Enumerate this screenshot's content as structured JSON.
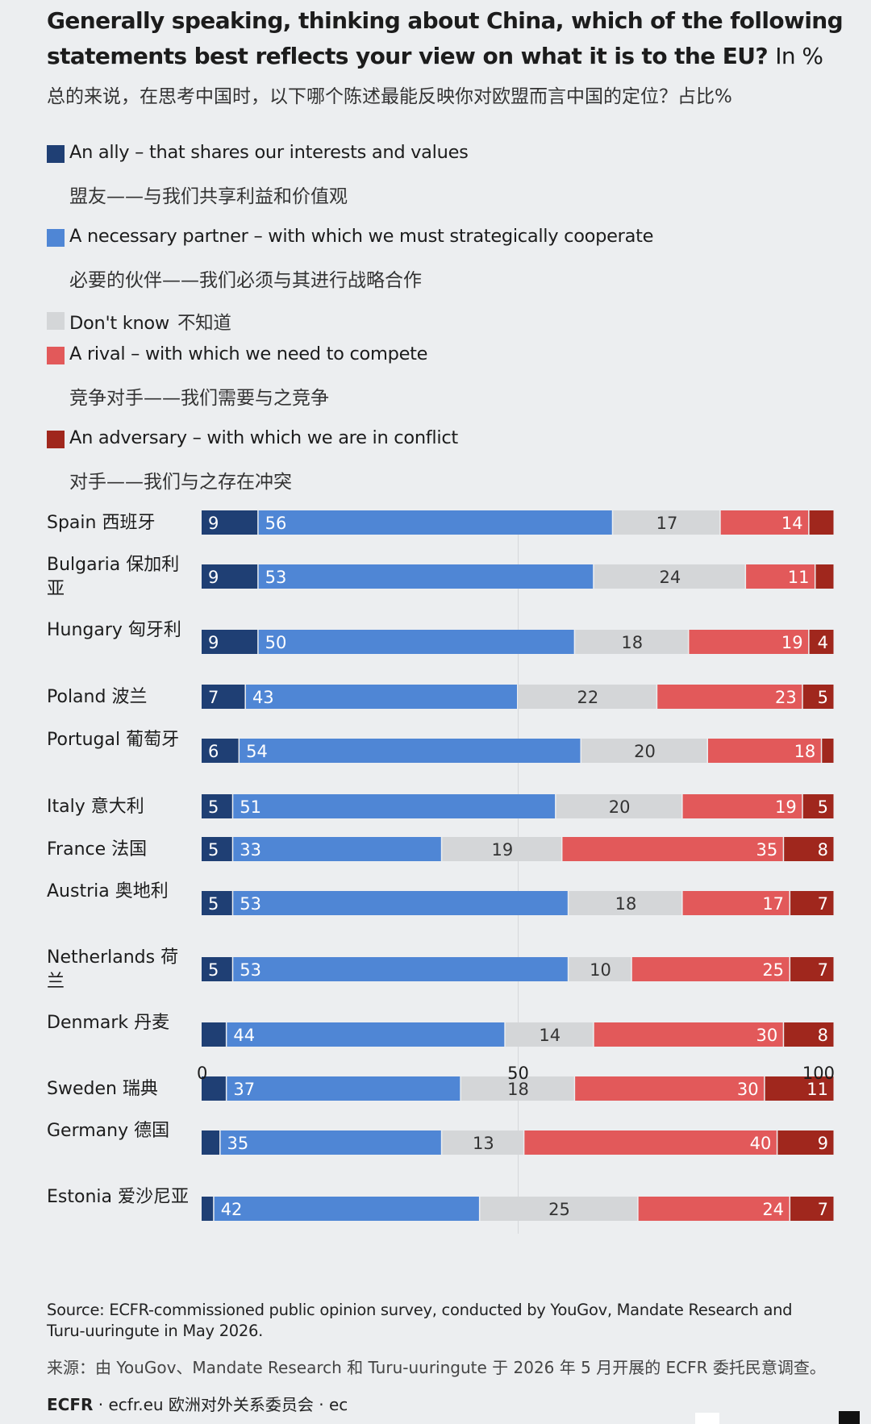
{
  "title": {
    "text": "Generally speaking, thinking about China, which of the following statements best reflects your view on what it is to the EU?",
    "unit": "In %",
    "cn": "总的来说，在思考中国时，以下哪个陈述最能反映你对欧盟而言中国的定位？占比%"
  },
  "legend": [
    {
      "en": "An ally – that shares our interests and values",
      "cn": "盟友——与我们共享利益和价值观",
      "color": "#1f3f74"
    },
    {
      "en": "A necessary partner – with which we must strategically cooperate",
      "cn": "必要的伙伴——我们必须与其进行战略合作",
      "color": "#4f86d5"
    },
    {
      "en": "Don't know",
      "cn": "不知道",
      "color": "#d4d6d8"
    },
    {
      "en": "A rival – with which we need to compete",
      "cn": "竞争对手——我们需要与之竞争",
      "color": "#e2595a"
    },
    {
      "en": "An adversary – with which we are in conflict",
      "cn": "对手——我们与之存在冲突",
      "color": "#a0271d"
    }
  ],
  "chart_data": {
    "type": "bar",
    "orientation": "horizontal-stacked",
    "xlim": [
      0,
      100
    ],
    "x_ticks": [
      "0",
      "50",
      "100"
    ],
    "series": [
      {
        "name": "An ally",
        "color": "#1f3f74"
      },
      {
        "name": "A necessary partner",
        "color": "#4f86d5"
      },
      {
        "name": "Don't know",
        "color": "#d4d6d8"
      },
      {
        "name": "A rival",
        "color": "#e2595a"
      },
      {
        "name": "An adversary",
        "color": "#a0271d"
      }
    ],
    "rows": [
      {
        "label": "Spain 西班牙",
        "values": [
          9,
          56,
          17,
          14,
          4
        ],
        "labels": [
          "9",
          "56",
          "17",
          "14",
          ""
        ]
      },
      {
        "label": "Bulgaria 保加利亚",
        "values": [
          9,
          53,
          24,
          11,
          3
        ],
        "labels": [
          "9",
          "53",
          "24",
          "11",
          ""
        ]
      },
      {
        "label": "Hungary 匈牙利",
        "values": [
          9,
          50,
          18,
          19,
          4
        ],
        "labels": [
          "9",
          "50",
          "18",
          "19",
          "4"
        ]
      },
      {
        "label": "Poland 波兰",
        "values": [
          7,
          43,
          22,
          23,
          5
        ],
        "labels": [
          "7",
          "43",
          "22",
          "23",
          "5"
        ]
      },
      {
        "label": "Portugal 葡萄牙",
        "values": [
          6,
          54,
          20,
          18,
          2
        ],
        "labels": [
          "6",
          "54",
          "20",
          "18",
          ""
        ]
      },
      {
        "label": "Italy 意大利",
        "values": [
          5,
          51,
          20,
          19,
          5
        ],
        "labels": [
          "5",
          "51",
          "20",
          "19",
          "5"
        ]
      },
      {
        "label": "France 法国",
        "values": [
          5,
          33,
          19,
          35,
          8
        ],
        "labels": [
          "5",
          "33",
          "19",
          "35",
          "8"
        ]
      },
      {
        "label": "Austria 奥地利",
        "values": [
          5,
          53,
          18,
          17,
          7
        ],
        "labels": [
          "5",
          "53",
          "18",
          "17",
          "7"
        ]
      },
      {
        "label": "Netherlands 荷兰",
        "values": [
          5,
          53,
          10,
          25,
          7
        ],
        "labels": [
          "5",
          "53",
          "10",
          "25",
          "7"
        ]
      },
      {
        "label": "Denmark 丹麦",
        "values": [
          4,
          44,
          14,
          30,
          8
        ],
        "labels": [
          "",
          "44",
          "14",
          "30",
          "8"
        ]
      },
      {
        "label": "Sweden 瑞典",
        "values": [
          4,
          37,
          18,
          30,
          11
        ],
        "labels": [
          "",
          "37",
          "18",
          "30",
          "11"
        ]
      },
      {
        "label": "Germany 德国",
        "values": [
          3,
          35,
          13,
          40,
          9
        ],
        "labels": [
          "",
          "35",
          "13",
          "40",
          "9"
        ]
      },
      {
        "label": "Estonia 爱沙尼亚",
        "values": [
          2,
          42,
          25,
          24,
          7
        ],
        "labels": [
          "",
          "42",
          "25",
          "24",
          "7"
        ]
      }
    ]
  },
  "source": {
    "en": "Source: ECFR-commissioned public opinion survey, conducted by YouGov, Mandate Research and Turu-uuringute in May 2026.",
    "cn": "来源：由 YouGov、Mandate Research 和 Turu-uuringute 于 2026 年 5 月开展的 ECFR 委托民意调查。"
  },
  "footer": {
    "brand": "ECFR",
    "text": " · ecfr.eu  欧洲对外关系委员会 · ec"
  }
}
